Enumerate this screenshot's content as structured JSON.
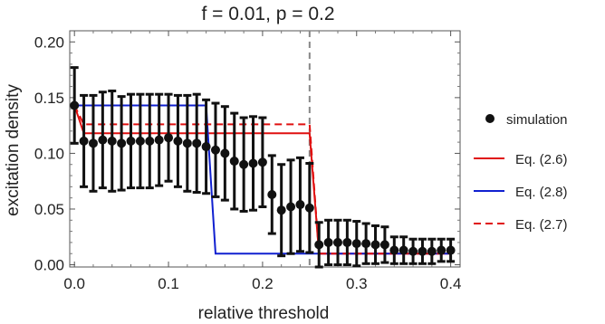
{
  "chart_data": {
    "type": "scatter",
    "title": "f = 0.01, p = 0.2",
    "xlabel": "relative threshold",
    "ylabel": "excitation density",
    "xlim": [
      -0.005,
      0.41
    ],
    "ylim": [
      -0.002,
      0.21
    ],
    "xticks": [
      0.0,
      0.1,
      0.2,
      0.3,
      0.4
    ],
    "xtick_labels": [
      "0.0",
      "0.1",
      "0.2",
      "0.3",
      "0.4"
    ],
    "yticks": [
      0.0,
      0.05,
      0.1,
      0.15,
      0.2
    ],
    "ytick_labels": [
      "0.00",
      "0.05",
      "0.10",
      "0.15",
      "0.20"
    ],
    "grid": false,
    "legend_position": "right",
    "vline": {
      "x": 0.25,
      "color": "#888888",
      "style": "dashed"
    },
    "simulation": {
      "name": "simulation",
      "color": "#111111",
      "x": [
        0.0,
        0.01,
        0.02,
        0.03,
        0.04,
        0.05,
        0.06,
        0.07,
        0.08,
        0.09,
        0.1,
        0.11,
        0.12,
        0.13,
        0.14,
        0.15,
        0.16,
        0.17,
        0.18,
        0.19,
        0.2,
        0.21,
        0.22,
        0.23,
        0.24,
        0.25,
        0.26,
        0.27,
        0.28,
        0.29,
        0.3,
        0.31,
        0.32,
        0.33,
        0.34,
        0.35,
        0.36,
        0.37,
        0.38,
        0.39,
        0.4
      ],
      "y": [
        0.143,
        0.111,
        0.109,
        0.112,
        0.111,
        0.109,
        0.111,
        0.111,
        0.111,
        0.112,
        0.114,
        0.111,
        0.109,
        0.109,
        0.106,
        0.103,
        0.1,
        0.093,
        0.09,
        0.091,
        0.092,
        0.063,
        0.049,
        0.052,
        0.054,
        0.051,
        0.018,
        0.02,
        0.02,
        0.02,
        0.019,
        0.019,
        0.018,
        0.018,
        0.013,
        0.013,
        0.012,
        0.012,
        0.012,
        0.013,
        0.013
      ],
      "err": [
        0.034,
        0.041,
        0.043,
        0.043,
        0.045,
        0.042,
        0.042,
        0.042,
        0.042,
        0.041,
        0.039,
        0.041,
        0.043,
        0.044,
        0.042,
        0.042,
        0.042,
        0.043,
        0.042,
        0.042,
        0.04,
        0.035,
        0.041,
        0.042,
        0.042,
        0.04,
        0.02,
        0.02,
        0.02,
        0.02,
        0.02,
        0.018,
        0.017,
        0.016,
        0.012,
        0.012,
        0.011,
        0.011,
        0.011,
        0.01,
        0.01
      ]
    },
    "series": [
      {
        "name": "Eq. (2.6)",
        "color": "#e01010",
        "dash": "solid",
        "x": [
          0.0,
          0.01,
          0.25,
          0.26,
          0.4
        ],
        "y": [
          0.143,
          0.118,
          0.118,
          0.01,
          0.01
        ]
      },
      {
        "name": "Eq. (2.8)",
        "color": "#1020d0",
        "dash": "solid",
        "x": [
          0.0,
          0.14,
          0.15,
          0.25,
          0.26,
          0.4
        ],
        "y": [
          0.143,
          0.143,
          0.01,
          0.01,
          0.01,
          0.01
        ]
      },
      {
        "name": "Eq. (2.7)",
        "color": "#e01010",
        "dash": "dashed",
        "x": [
          0.0,
          0.01,
          0.25,
          0.26,
          0.4
        ],
        "y": [
          0.143,
          0.126,
          0.126,
          0.01,
          0.01
        ]
      }
    ]
  }
}
